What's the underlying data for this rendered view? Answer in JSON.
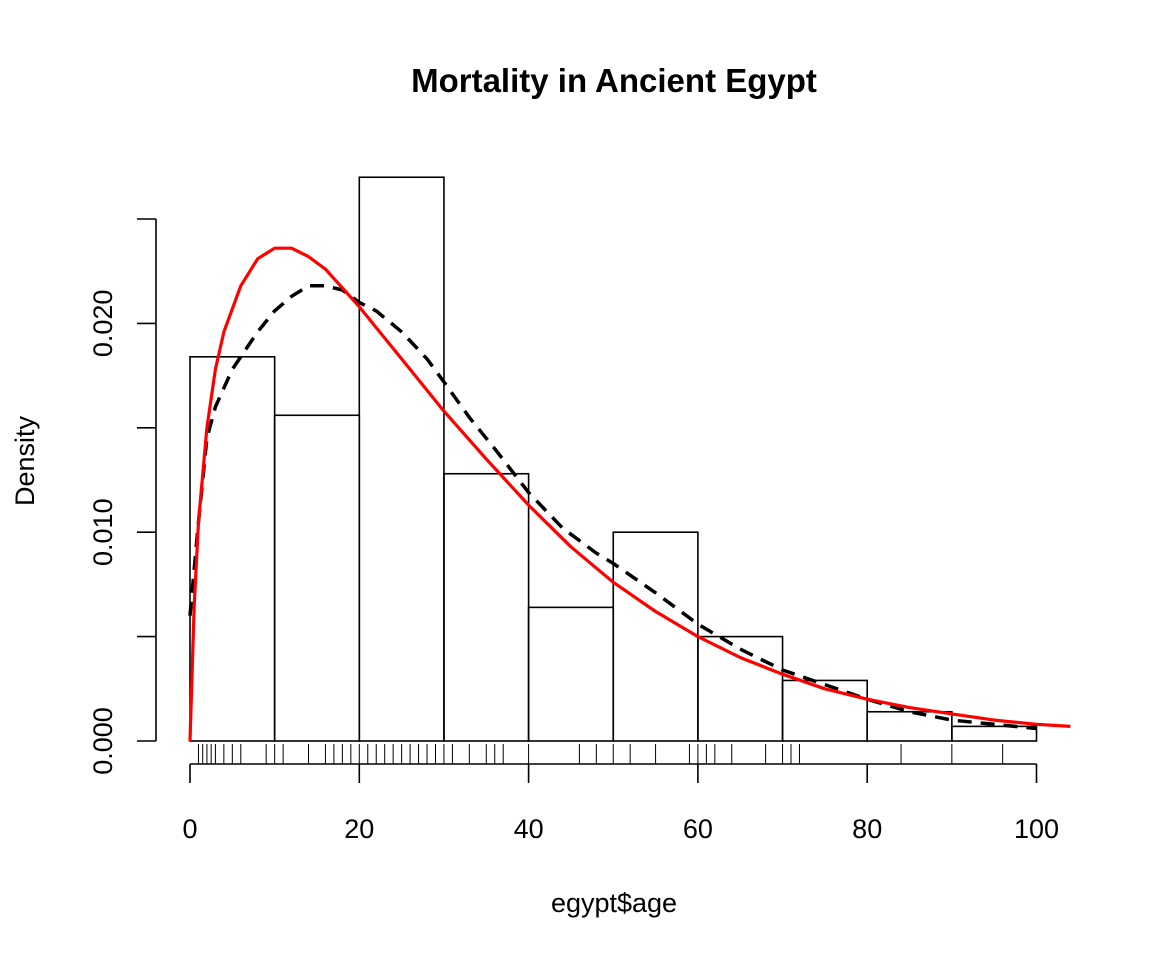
{
  "chart_data": {
    "type": "histogram",
    "title": "Mortality in Ancient Egypt",
    "xlabel": "egypt$age",
    "ylabel": "Density",
    "xlim": [
      0,
      105
    ],
    "ylim": [
      0,
      0.025
    ],
    "x_ticks": [
      "0",
      "20",
      "40",
      "60",
      "80",
      "100"
    ],
    "y_ticks": [
      "0.000",
      "0.010",
      "0.020"
    ],
    "y_minor_ticks": [
      0.005,
      0.015,
      0.025
    ],
    "bins": [
      {
        "from": 0,
        "to": 10,
        "density": 0.0184
      },
      {
        "from": 10,
        "to": 20,
        "density": 0.0156
      },
      {
        "from": 20,
        "to": 30,
        "density": 0.027
      },
      {
        "from": 30,
        "to": 40,
        "density": 0.0128
      },
      {
        "from": 40,
        "to": 50,
        "density": 0.0064
      },
      {
        "from": 50,
        "to": 60,
        "density": 0.01
      },
      {
        "from": 60,
        "to": 70,
        "density": 0.005
      },
      {
        "from": 70,
        "to": 80,
        "density": 0.0029
      },
      {
        "from": 80,
        "to": 90,
        "density": 0.0014
      },
      {
        "from": 90,
        "to": 100,
        "density": 0.0007
      }
    ],
    "series": [
      {
        "style": "dashed",
        "color": "#000000",
        "points": [
          [
            0,
            0.006
          ],
          [
            1,
            0.0105
          ],
          [
            2,
            0.0145
          ],
          [
            3,
            0.016
          ],
          [
            5,
            0.0178
          ],
          [
            8,
            0.0196
          ],
          [
            10,
            0.0206
          ],
          [
            12,
            0.0213
          ],
          [
            14,
            0.0218
          ],
          [
            16,
            0.0218
          ],
          [
            18,
            0.0216
          ],
          [
            20,
            0.021
          ],
          [
            22,
            0.0206
          ],
          [
            25,
            0.0196
          ],
          [
            28,
            0.0183
          ],
          [
            30,
            0.0172
          ],
          [
            33,
            0.0155
          ],
          [
            36,
            0.014
          ],
          [
            40,
            0.0119
          ],
          [
            44,
            0.0102
          ],
          [
            48,
            0.009
          ],
          [
            50,
            0.0085
          ],
          [
            55,
            0.0071
          ],
          [
            60,
            0.0056
          ],
          [
            65,
            0.0044
          ],
          [
            70,
            0.0034
          ],
          [
            75,
            0.0027
          ],
          [
            80,
            0.002
          ],
          [
            85,
            0.0014
          ],
          [
            90,
            0.001
          ],
          [
            95,
            0.0008
          ],
          [
            100,
            0.0006
          ]
        ]
      },
      {
        "style": "solid",
        "color": "#ff0000",
        "points": [
          [
            0,
            0.0
          ],
          [
            0.5,
            0.0065
          ],
          [
            1,
            0.0105
          ],
          [
            2,
            0.015
          ],
          [
            3,
            0.0178
          ],
          [
            4,
            0.0196
          ],
          [
            6,
            0.0218
          ],
          [
            8,
            0.0231
          ],
          [
            10,
            0.0236
          ],
          [
            12,
            0.0236
          ],
          [
            14,
            0.0232
          ],
          [
            16,
            0.0226
          ],
          [
            18,
            0.0217
          ],
          [
            20,
            0.0208
          ],
          [
            22,
            0.0198
          ],
          [
            25,
            0.0183
          ],
          [
            28,
            0.0168
          ],
          [
            30,
            0.0158
          ],
          [
            35,
            0.0135
          ],
          [
            40,
            0.0113
          ],
          [
            45,
            0.0093
          ],
          [
            50,
            0.0076
          ],
          [
            55,
            0.0062
          ],
          [
            60,
            0.005
          ],
          [
            65,
            0.004
          ],
          [
            70,
            0.0032
          ],
          [
            75,
            0.0025
          ],
          [
            80,
            0.002
          ],
          [
            85,
            0.0016
          ],
          [
            90,
            0.0013
          ],
          [
            95,
            0.001
          ],
          [
            100,
            0.0008
          ],
          [
            104,
            0.0007
          ]
        ]
      }
    ],
    "rug": [
      1,
      1.5,
      2,
      2.5,
      3,
      4,
      5,
      6,
      9,
      10,
      11,
      14,
      16,
      17,
      18,
      19,
      20,
      21,
      22,
      23,
      24,
      25,
      26,
      27,
      28,
      29,
      30,
      31,
      33,
      35,
      36,
      37,
      40,
      46,
      48,
      50,
      52,
      55,
      59,
      60,
      61,
      62,
      64,
      68,
      70,
      71,
      72,
      84,
      90,
      96
    ],
    "grid": false,
    "legend": "none"
  }
}
